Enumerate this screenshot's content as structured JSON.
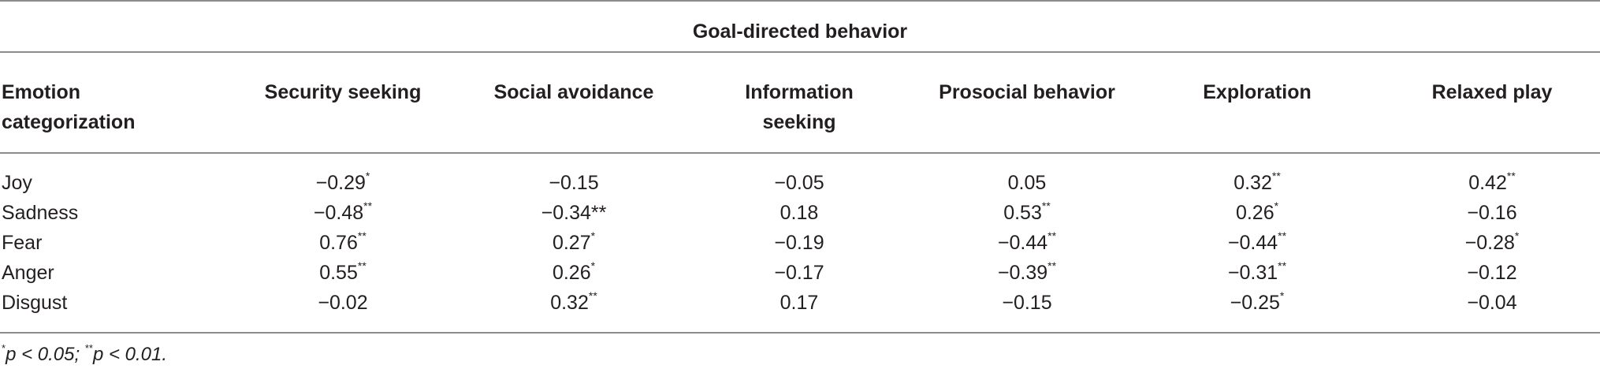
{
  "table": {
    "group_header": "Goal-directed behavior",
    "row_header_line1": "Emotion",
    "row_header_line2": "categorization",
    "columns": [
      {
        "line1": "Security seeking",
        "line2": ""
      },
      {
        "line1": "Social avoidance",
        "line2": ""
      },
      {
        "line1": "Information",
        "line2": "seeking"
      },
      {
        "line1": "Prosocial behavior",
        "line2": ""
      },
      {
        "line1": "Exploration",
        "line2": ""
      },
      {
        "line1": "Relaxed play",
        "line2": ""
      }
    ],
    "rows": [
      {
        "label": "Joy",
        "cells": [
          {
            "value": "−0.29",
            "sig": "*"
          },
          {
            "value": "−0.15",
            "sig": ""
          },
          {
            "value": "−0.05",
            "sig": ""
          },
          {
            "value": "0.05",
            "sig": ""
          },
          {
            "value": "0.32",
            "sig": "**"
          },
          {
            "value": "0.42",
            "sig": "**"
          }
        ]
      },
      {
        "label": "Sadness",
        "cells": [
          {
            "value": "−0.48",
            "sig": "**"
          },
          {
            "value": "−0.34**",
            "sig": ""
          },
          {
            "value": "0.18",
            "sig": ""
          },
          {
            "value": "0.53",
            "sig": "**"
          },
          {
            "value": "0.26",
            "sig": "*"
          },
          {
            "value": "−0.16",
            "sig": ""
          }
        ]
      },
      {
        "label": "Fear",
        "cells": [
          {
            "value": "0.76",
            "sig": "**"
          },
          {
            "value": "0.27",
            "sig": "*"
          },
          {
            "value": "−0.19",
            "sig": ""
          },
          {
            "value": "−0.44",
            "sig": "**"
          },
          {
            "value": "−0.44",
            "sig": "**"
          },
          {
            "value": "−0.28",
            "sig": "*"
          }
        ]
      },
      {
        "label": "Anger",
        "cells": [
          {
            "value": "0.55",
            "sig": "**"
          },
          {
            "value": "0.26",
            "sig": "*"
          },
          {
            "value": "−0.17",
            "sig": ""
          },
          {
            "value": "−0.39",
            "sig": "**"
          },
          {
            "value": "−0.31",
            "sig": "**"
          },
          {
            "value": "−0.12",
            "sig": ""
          }
        ]
      },
      {
        "label": "Disgust",
        "cells": [
          {
            "value": "−0.02",
            "sig": ""
          },
          {
            "value": "0.32",
            "sig": "**"
          },
          {
            "value": "0.17",
            "sig": ""
          },
          {
            "value": "−0.15",
            "sig": ""
          },
          {
            "value": "−0.25",
            "sig": "*"
          },
          {
            "value": "−0.04",
            "sig": ""
          }
        ]
      }
    ],
    "footnote": {
      "star1": "*",
      "text1": "p < 0.05; ",
      "star2": "**",
      "text2": "p < 0.01."
    }
  }
}
